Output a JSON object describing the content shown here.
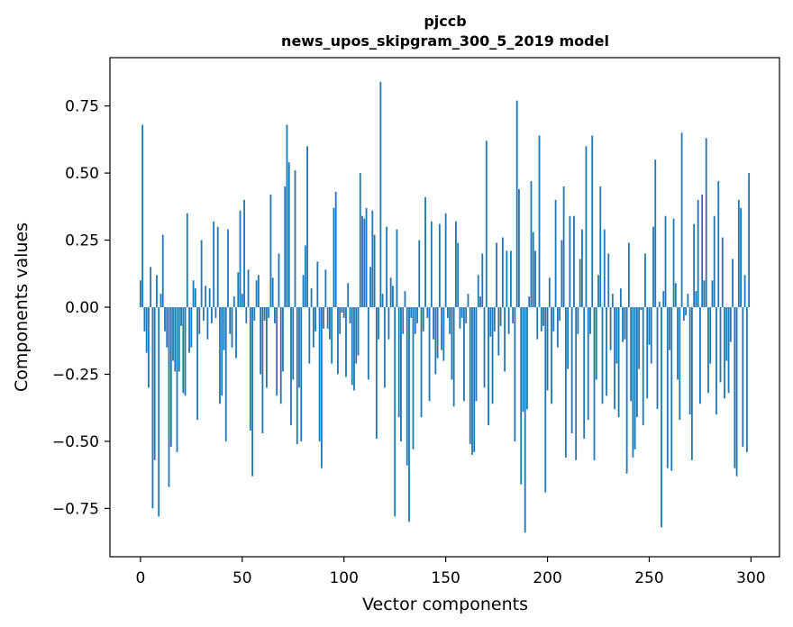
{
  "colors": {
    "bar": "#1f77b4",
    "axis": "#000000",
    "background": "#ffffff"
  },
  "chart_data": {
    "type": "bar",
    "title": "pjccb",
    "subtitle": "news_upos_skipgram_300_5_2019 model",
    "xlabel": "Vector components",
    "ylabel": "Components values",
    "xlim": [
      -15,
      314
    ],
    "ylim": [
      -0.93,
      0.93
    ],
    "xticks": [
      0,
      50,
      100,
      150,
      200,
      250,
      300
    ],
    "xtick_labels": [
      "0",
      "50",
      "100",
      "150",
      "200",
      "250",
      "300"
    ],
    "yticks": [
      -0.75,
      -0.5,
      -0.25,
      0.0,
      0.25,
      0.5,
      0.75
    ],
    "ytick_labels": [
      "−0.75",
      "−0.50",
      "−0.25",
      "0.00",
      "0.25",
      "0.50",
      "0.75"
    ],
    "grid": false,
    "values": [
      0.1,
      0.68,
      -0.09,
      -0.17,
      -0.3,
      0.15,
      -0.75,
      -0.57,
      0.12,
      -0.78,
      0.05,
      0.27,
      -0.09,
      -0.15,
      -0.67,
      -0.52,
      -0.2,
      -0.24,
      -0.54,
      -0.24,
      -0.07,
      -0.32,
      -0.33,
      0.35,
      -0.17,
      -0.15,
      0.1,
      0.07,
      -0.42,
      -0.1,
      0.25,
      -0.05,
      0.08,
      -0.12,
      0.07,
      -0.06,
      0.32,
      -0.04,
      0.3,
      -0.36,
      -0.33,
      -0.16,
      -0.5,
      0.29,
      -0.1,
      -0.15,
      0.04,
      -0.19,
      0.13,
      0.36,
      0.05,
      0.4,
      -0.06,
      0.14,
      -0.46,
      -0.63,
      -0.05,
      0.1,
      0.12,
      -0.25,
      -0.47,
      -0.05,
      -0.3,
      -0.04,
      0.42,
      0.11,
      -0.06,
      -0.33,
      0.2,
      -0.36,
      -0.24,
      0.45,
      0.68,
      0.54,
      -0.44,
      -0.27,
      0.51,
      -0.51,
      -0.3,
      -0.5,
      0.12,
      0.23,
      0.6,
      -0.21,
      0.07,
      -0.15,
      -0.09,
      0.17,
      -0.5,
      -0.6,
      -0.08,
      0.14,
      -0.08,
      -0.12,
      -0.21,
      0.37,
      0.43,
      -0.25,
      -0.1,
      -0.02,
      -0.04,
      -0.26,
      0.09,
      -0.06,
      -0.29,
      -0.31,
      -0.21,
      -0.18,
      0.5,
      0.34,
      0.33,
      0.37,
      -0.27,
      0.15,
      0.36,
      0.27,
      -0.49,
      -0.12,
      0.84,
      0.05,
      -0.3,
      0.3,
      -0.12,
      0.11,
      0.08,
      -0.78,
      0.29,
      -0.41,
      -0.5,
      -0.1,
      0.06,
      -0.59,
      -0.8,
      -0.04,
      -0.53,
      -0.1,
      -0.06,
      0.25,
      -0.41,
      -0.09,
      0.41,
      -0.04,
      -0.35,
      0.32,
      -0.12,
      -0.25,
      -0.19,
      0.31,
      -0.16,
      -0.2,
      0.35,
      -0.04,
      -0.1,
      -0.27,
      -0.37,
      0.32,
      0.24,
      -0.08,
      -0.04,
      -0.35,
      -0.06,
      0.05,
      -0.51,
      -0.55,
      -0.54,
      -0.35,
      0.12,
      0.04,
      0.2,
      -0.3,
      0.62,
      -0.44,
      -0.11,
      -0.36,
      -0.09,
      0.24,
      -0.18,
      -0.07,
      0.26,
      -0.24,
      0.21,
      -0.1,
      0.21,
      -0.06,
      -0.5,
      0.77,
      0.44,
      -0.66,
      -0.39,
      -0.84,
      -0.38,
      0.04,
      0.47,
      0.28,
      0.21,
      -0.12,
      0.64,
      -0.09,
      -0.07,
      -0.69,
      -0.31,
      0.11,
      -0.36,
      -0.09,
      0.4,
      -0.15,
      -0.05,
      0.25,
      0.45,
      -0.56,
      -0.23,
      0.34,
      -0.47,
      0.34,
      -0.57,
      -0.1,
      0.18,
      0.29,
      -0.49,
      0.6,
      -0.42,
      -0.1,
      0.64,
      -0.57,
      -0.27,
      0.12,
      0.45,
      -0.36,
      0.29,
      -0.33,
      0.2,
      -0.16,
      0.05,
      -0.38,
      -0.21,
      -0.41,
      0.07,
      -0.13,
      -0.12,
      -0.62,
      0.24,
      -0.35,
      -0.56,
      -0.53,
      -0.41,
      -0.23,
      -0.01,
      -0.44,
      0.2,
      -0.34,
      -0.14,
      -0.21,
      0.3,
      0.55,
      -0.38,
      0.02,
      -0.82,
      0.06,
      0.34,
      -0.6,
      -0.16,
      -0.61,
      0.33,
      0.09,
      -0.27,
      -0.42,
      0.65,
      -0.05,
      -0.03,
      0.05,
      -0.4,
      -0.57,
      0.31,
      0.06,
      0.4,
      -0.36,
      0.42,
      0.1,
      0.63,
      -0.32,
      -0.21,
      0.1,
      0.34,
      -0.4,
      0.47,
      -0.28,
      0.26,
      -0.34,
      -0.2,
      -0.32,
      -0.13,
      0.18,
      -0.6,
      -0.63,
      0.4,
      0.37,
      -0.52,
      0.12,
      -0.54,
      0.5
    ]
  }
}
